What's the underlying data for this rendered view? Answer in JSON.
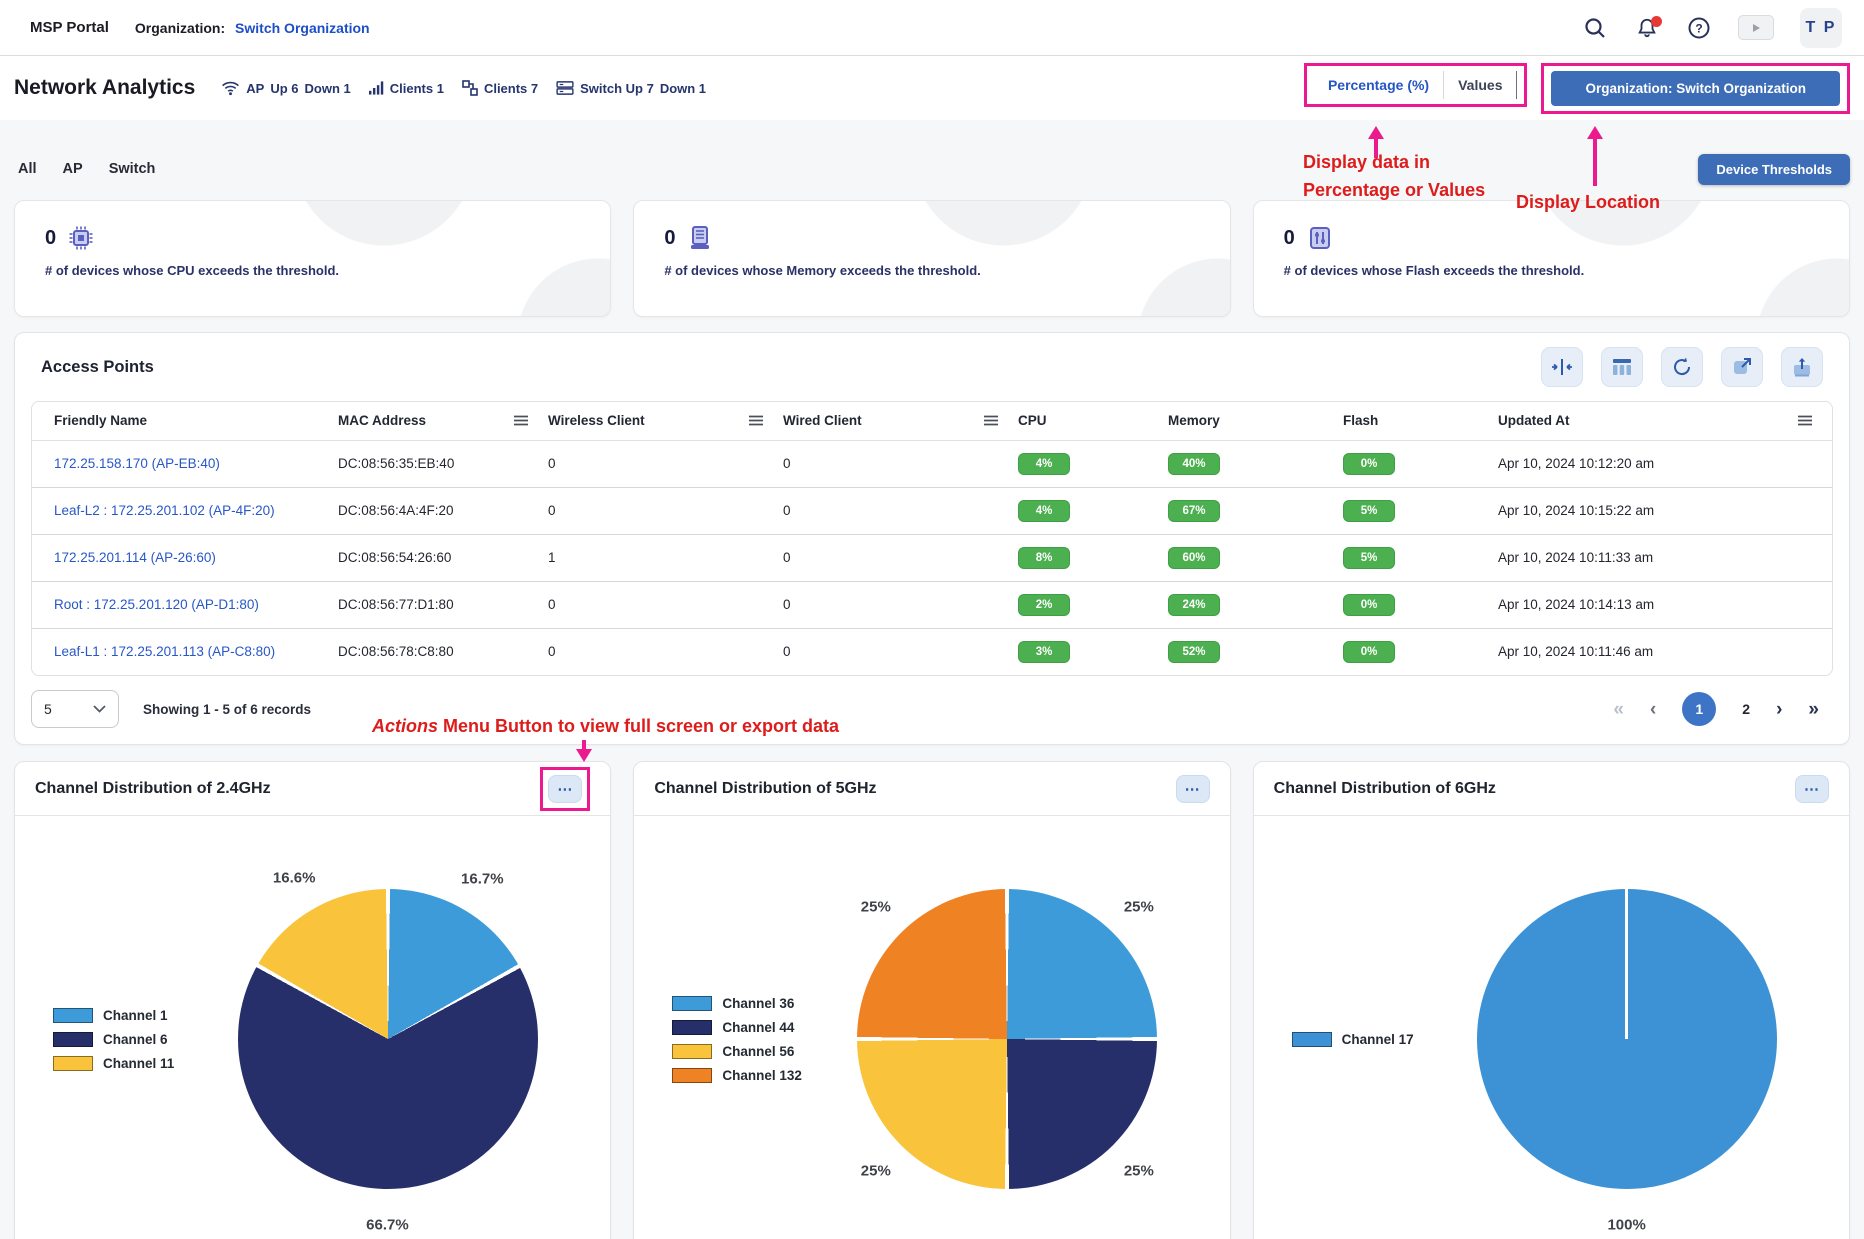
{
  "topbar": {
    "brand": "MSP Portal",
    "org_label": "Organization:",
    "org_value": "Switch Organization",
    "avatar_initials": "T P"
  },
  "header": {
    "title": "Network Analytics",
    "stats": {
      "ap_label": "AP",
      "ap_up": "Up 6",
      "ap_down": "Down 1",
      "clients_wireless": "Clients 1",
      "clients_wired": "Clients 7",
      "switch_up": "Switch Up 7",
      "switch_down": "Down 1"
    },
    "toggle": {
      "options": [
        "Percentage (%)",
        "Values"
      ],
      "active": "Percentage (%)"
    },
    "org_button": "Organization: Switch Organization"
  },
  "annotations": {
    "toggle_note_line1": "Display data in",
    "toggle_note_line2": "Percentage or Values",
    "location_note": "Display Location",
    "actions_note_em": "Actions",
    "actions_note_rest": " Menu Button to view full screen or export data"
  },
  "tabs": [
    "All",
    "AP",
    "Switch"
  ],
  "device_thresholds_button": "Device Thresholds",
  "stat_cards": [
    {
      "value": "0",
      "icon": "cpu-chip-icon",
      "label": "# of devices whose CPU exceeds the threshold."
    },
    {
      "value": "0",
      "icon": "memory-icon",
      "label": "# of devices whose Memory exceeds the threshold."
    },
    {
      "value": "0",
      "icon": "flash-icon",
      "label": "# of devices whose Flash exceeds the threshold."
    }
  ],
  "access_points": {
    "title": "Access Points",
    "toolbar_icons": [
      "collapse-columns-icon",
      "columns-icon",
      "refresh-icon",
      "expand-icon",
      "export-icon"
    ],
    "columns": [
      "Friendly Name",
      "MAC Address",
      "Wireless Client",
      "Wired Client",
      "CPU",
      "Memory",
      "Flash",
      "Updated At"
    ],
    "badge_color": "#4caf50",
    "rows": [
      {
        "name": "172.25.158.170 (AP-EB:40)",
        "mac": "DC:08:56:35:EB:40",
        "wireless": "0",
        "wired": "0",
        "cpu": "4%",
        "memory": "40%",
        "flash": "0%",
        "updated": "Apr 10, 2024 10:12:20 am"
      },
      {
        "name": "Leaf-L2 : 172.25.201.102 (AP-4F:20)",
        "mac": "DC:08:56:4A:4F:20",
        "wireless": "0",
        "wired": "0",
        "cpu": "4%",
        "memory": "67%",
        "flash": "5%",
        "updated": "Apr 10, 2024 10:15:22 am"
      },
      {
        "name": "172.25.201.114 (AP-26:60)",
        "mac": "DC:08:56:54:26:60",
        "wireless": "1",
        "wired": "0",
        "cpu": "8%",
        "memory": "60%",
        "flash": "5%",
        "updated": "Apr 10, 2024 10:11:33 am"
      },
      {
        "name": "Root : 172.25.201.120 (AP-D1:80)",
        "mac": "DC:08:56:77:D1:80",
        "wireless": "0",
        "wired": "0",
        "cpu": "2%",
        "memory": "24%",
        "flash": "0%",
        "updated": "Apr 10, 2024 10:14:13 am"
      },
      {
        "name": "Leaf-L1 : 172.25.201.113 (AP-C8:80)",
        "mac": "DC:08:56:78:C8:80",
        "wireless": "0",
        "wired": "0",
        "cpu": "3%",
        "memory": "52%",
        "flash": "0%",
        "updated": "Apr 10, 2024 10:11:46 am"
      }
    ],
    "pagination": {
      "page_size": "5",
      "summary": "Showing 1 - 5 of 6 records",
      "pages": [
        "1",
        "2"
      ],
      "current_page": "1"
    }
  },
  "chart_data": [
    {
      "type": "pie",
      "title": "Channel Distribution of 2.4GHz",
      "legend_position": "left",
      "labels": [
        "Channel 1",
        "Channel 6",
        "Channel 11"
      ],
      "values": [
        16.7,
        66.7,
        16.6
      ],
      "display_labels": [
        "16.7%",
        "66.7%",
        "16.6%"
      ],
      "colors": [
        "#3d9bd9",
        "#272f6b",
        "#f9c33c"
      ]
    },
    {
      "type": "pie",
      "title": "Channel Distribution of 5GHz",
      "legend_position": "left",
      "labels": [
        "Channel 36",
        "Channel 44",
        "Channel 56",
        "Channel 132"
      ],
      "values": [
        25,
        25,
        25,
        25
      ],
      "display_labels": [
        "25%",
        "25%",
        "25%",
        "25%"
      ],
      "colors": [
        "#3d9bd9",
        "#272f6b",
        "#f9c33c",
        "#ef8223"
      ]
    },
    {
      "type": "pie",
      "title": "Channel Distribution of 6GHz",
      "legend_position": "left",
      "labels": [
        "Channel 17"
      ],
      "values": [
        100
      ],
      "display_labels": [
        "100%"
      ],
      "colors": [
        "#3c92d5"
      ]
    }
  ],
  "colors": {
    "highlight_pink": "#ec1a8f",
    "annotation_red": "#dd1c1c",
    "primary_blue": "#3c6db6",
    "link_blue": "#2857c8",
    "badge_green": "#4caf50",
    "navy_text": "#25356e"
  }
}
